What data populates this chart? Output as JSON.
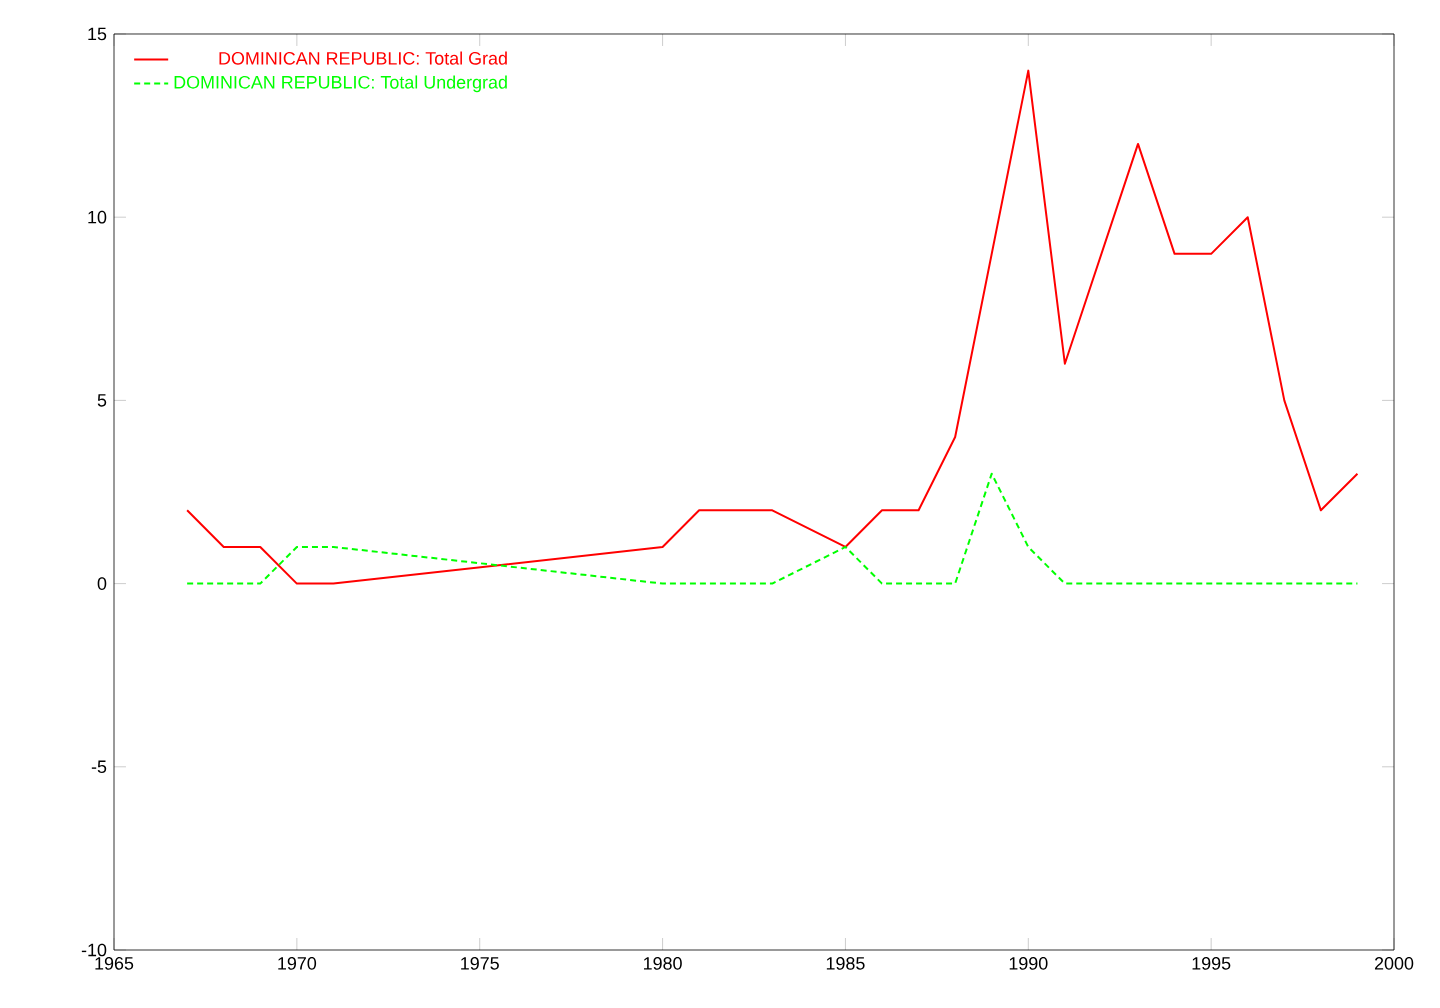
{
  "chart_data": {
    "type": "line",
    "xlim": [
      1965,
      2000
    ],
    "xticks": [
      1965,
      1970,
      1975,
      1980,
      1985,
      1990,
      1995,
      2000
    ],
    "ylim": [
      -10,
      15
    ],
    "yticks": [
      -10,
      -5,
      0,
      5,
      10,
      15
    ],
    "legend": "top left",
    "grid": false,
    "series": [
      {
        "name": "DOMINICAN REPUBLIC: Total Grad",
        "color": "#ff0000",
        "line_style": "solid",
        "x": [
          1967,
          1968,
          1969,
          1970,
          1971,
          1980,
          1981,
          1982,
          1983,
          1985,
          1986,
          1987,
          1988,
          1990,
          1991,
          1993,
          1994,
          1995,
          1996,
          1997,
          1998,
          1999
        ],
        "values": [
          2,
          1,
          1,
          0,
          0,
          1,
          2,
          2,
          2,
          1,
          2,
          2,
          4,
          14,
          6,
          12,
          9,
          9,
          10,
          5,
          2,
          3
        ]
      },
      {
        "name": "DOMINICAN REPUBLIC: Total Undergrad",
        "color": "#00ff00",
        "line_style": "dashed",
        "x": [
          1967,
          1968,
          1969,
          1970,
          1971,
          1980,
          1981,
          1982,
          1983,
          1985,
          1986,
          1987,
          1988,
          1989,
          1990,
          1991,
          1992,
          1993,
          1994,
          1995,
          1996,
          1997,
          1998,
          1999
        ],
        "values": [
          0,
          0,
          0,
          1,
          1,
          0,
          0,
          0,
          0,
          1,
          0,
          0,
          0,
          3,
          1,
          0,
          0,
          0,
          0,
          0,
          0,
          0,
          0,
          0
        ]
      }
    ]
  }
}
